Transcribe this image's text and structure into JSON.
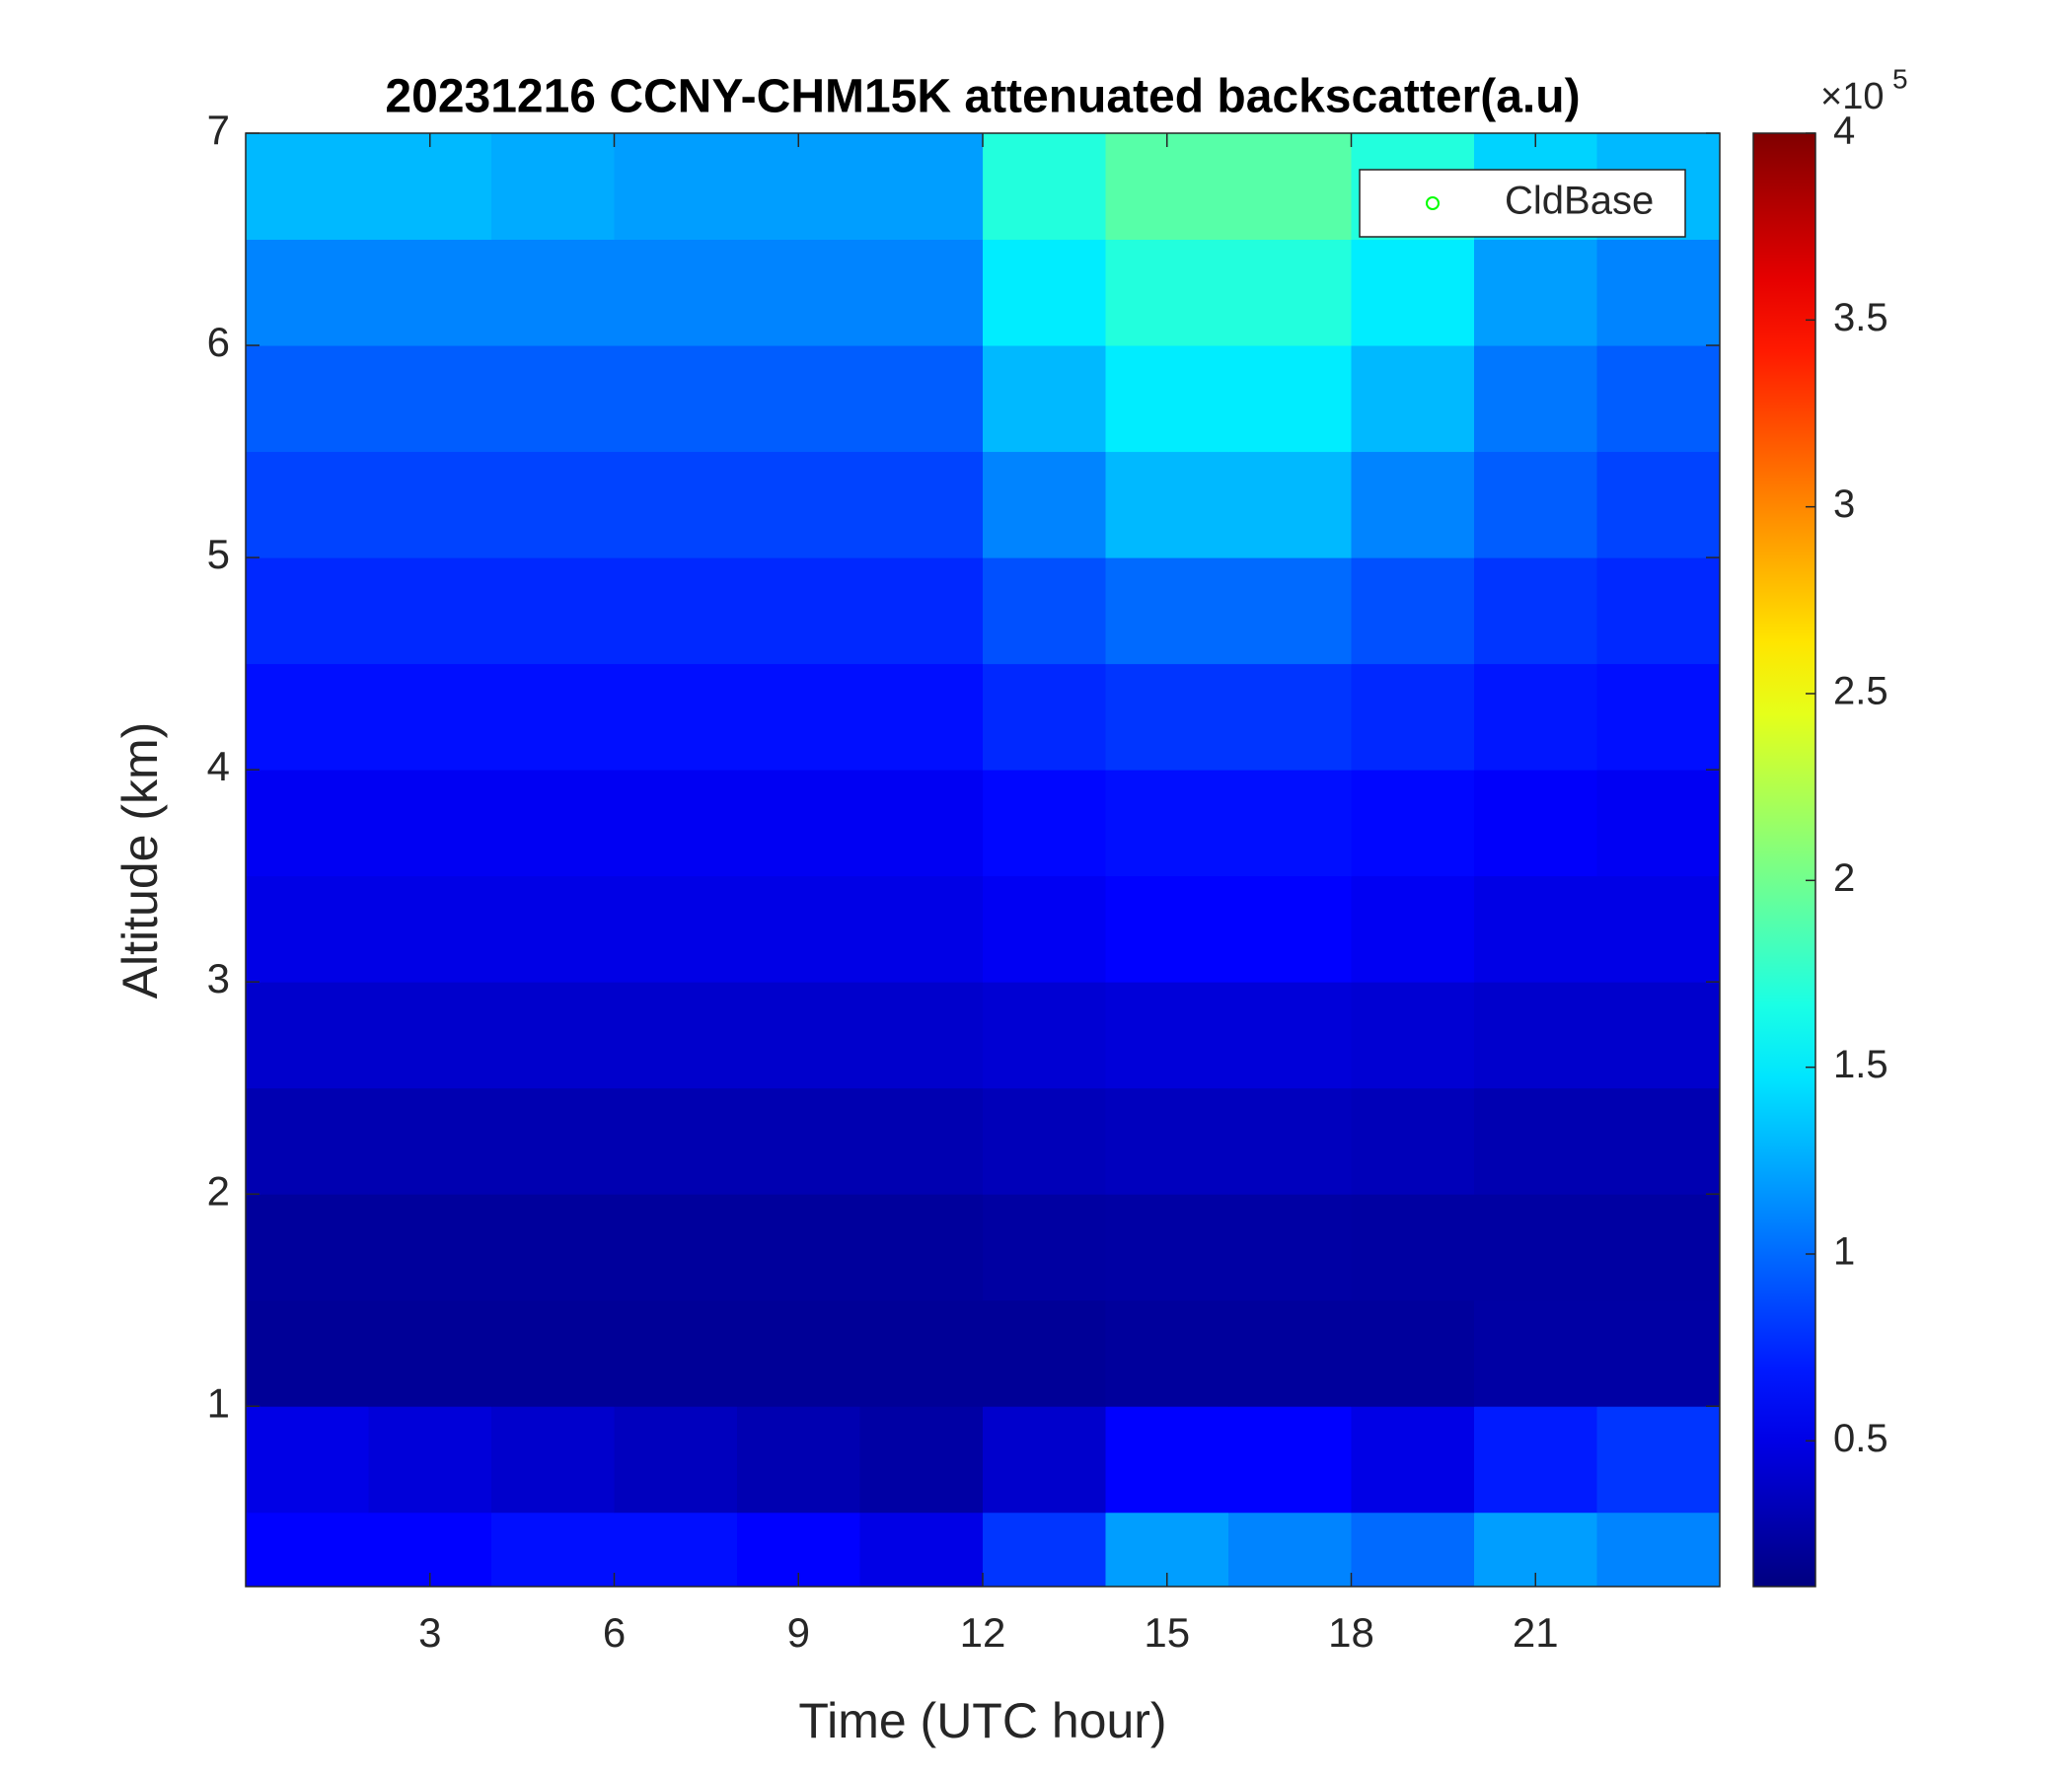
{
  "chart_data": {
    "type": "heatmap",
    "title": "20231216 CCNY-CHM15K attenuated backscatter(a.u)",
    "x_label": "Time (UTC hour)",
    "y_label": "Altitude (km)",
    "xlim": [
      0,
      24
    ],
    "ylim": [
      0.15,
      7
    ],
    "xticks": [
      3,
      6,
      9,
      12,
      15,
      18,
      21
    ],
    "yticks": [
      1,
      2,
      3,
      4,
      5,
      6,
      7
    ],
    "x_edges": [
      0,
      2,
      4,
      6,
      8,
      10,
      12,
      14,
      16,
      18,
      20,
      22,
      24
    ],
    "y_edges": [
      0.15,
      0.5,
      1,
      1.5,
      2,
      2.5,
      3,
      3.5,
      4,
      4.5,
      5,
      5.5,
      6,
      6.5,
      7
    ],
    "z": [
      [
        0.6,
        0.6,
        0.65,
        0.65,
        0.6,
        0.5,
        0.8,
        1.2,
        1.1,
        1.0,
        1.2,
        1.1
      ],
      [
        0.5,
        0.45,
        0.4,
        0.35,
        0.3,
        0.25,
        0.4,
        0.6,
        0.6,
        0.5,
        0.7,
        0.8
      ],
      [
        0.2,
        0.2,
        0.2,
        0.2,
        0.2,
        0.2,
        0.2,
        0.22,
        0.22,
        0.22,
        0.25,
        0.25
      ],
      [
        0.22,
        0.22,
        0.22,
        0.22,
        0.22,
        0.22,
        0.24,
        0.25,
        0.25,
        0.24,
        0.24,
        0.24
      ],
      [
        0.3,
        0.3,
        0.3,
        0.3,
        0.3,
        0.3,
        0.33,
        0.35,
        0.35,
        0.33,
        0.3,
        0.3
      ],
      [
        0.4,
        0.4,
        0.4,
        0.4,
        0.4,
        0.4,
        0.43,
        0.45,
        0.45,
        0.43,
        0.4,
        0.4
      ],
      [
        0.5,
        0.5,
        0.5,
        0.5,
        0.5,
        0.5,
        0.55,
        0.6,
        0.6,
        0.55,
        0.5,
        0.5
      ],
      [
        0.55,
        0.55,
        0.55,
        0.55,
        0.55,
        0.55,
        0.62,
        0.65,
        0.65,
        0.62,
        0.58,
        0.55
      ],
      [
        0.65,
        0.65,
        0.65,
        0.65,
        0.65,
        0.65,
        0.75,
        0.8,
        0.8,
        0.75,
        0.68,
        0.65
      ],
      [
        0.75,
        0.75,
        0.75,
        0.75,
        0.75,
        0.75,
        0.9,
        1.0,
        1.0,
        0.9,
        0.8,
        0.75
      ],
      [
        0.85,
        0.85,
        0.85,
        0.85,
        0.85,
        0.85,
        1.1,
        1.3,
        1.3,
        1.1,
        0.95,
        0.85
      ],
      [
        0.95,
        0.95,
        0.95,
        0.95,
        0.95,
        0.95,
        1.3,
        1.5,
        1.5,
        1.3,
        1.05,
        0.95
      ],
      [
        1.1,
        1.1,
        1.1,
        1.1,
        1.1,
        1.1,
        1.5,
        1.7,
        1.7,
        1.5,
        1.2,
        1.1
      ],
      [
        1.3,
        1.3,
        1.25,
        1.2,
        1.2,
        1.2,
        1.7,
        1.9,
        1.9,
        1.7,
        1.4,
        1.3
      ]
    ],
    "colormap": "jet",
    "clim": [
      0.11,
      4
    ],
    "colorbar_ticks": [
      0.5,
      1,
      1.5,
      2,
      2.5,
      3,
      3.5,
      4
    ],
    "colorbar_multiplier": "×10",
    "colorbar_exponent": "5",
    "legend": {
      "labels": [
        "CldBase"
      ],
      "marker_color": "#00ff00",
      "position": "upper right"
    }
  }
}
